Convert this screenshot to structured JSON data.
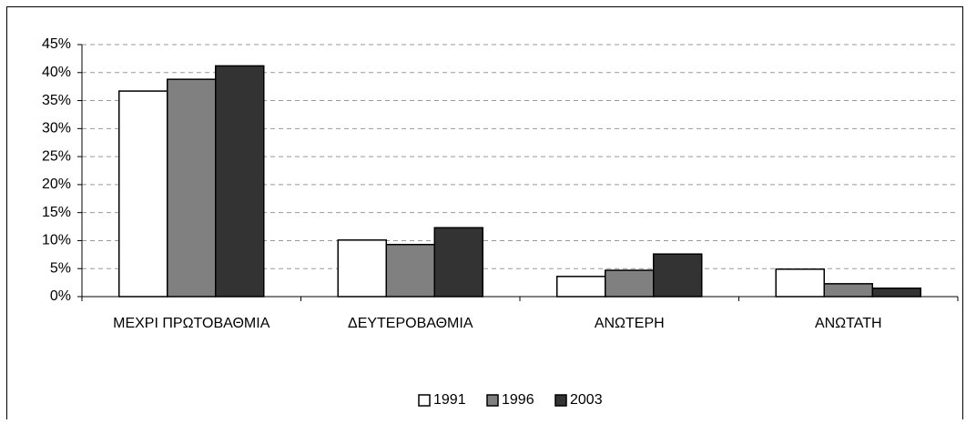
{
  "chart_data": {
    "type": "bar",
    "categories": [
      "ΜΕΧΡΙ ΠΡΩΤΟΒΑΘΜΙΑ",
      "ΔΕΥΤΕΡΟΒΑΘΜΙΑ",
      "ΑΝΩΤΕΡΗ",
      "ΑΝΩΤΑΤΗ"
    ],
    "series": [
      {
        "name": "1991",
        "color": "#ffffff",
        "values": [
          36.7,
          10.1,
          3.6,
          4.9
        ]
      },
      {
        "name": "1996",
        "color": "#808080",
        "values": [
          38.8,
          9.3,
          4.7,
          2.3
        ]
      },
      {
        "name": "2003",
        "color": "#333333",
        "values": [
          41.2,
          12.3,
          7.6,
          1.5
        ]
      }
    ],
    "ylim": [
      0,
      45
    ],
    "yticks": [
      {
        "value": 0,
        "label": "0%"
      },
      {
        "value": 5,
        "label": "5%"
      },
      {
        "value": 10,
        "label": "10%"
      },
      {
        "value": 15,
        "label": "15%"
      },
      {
        "value": 20,
        "label": "20%"
      },
      {
        "value": 25,
        "label": "25%"
      },
      {
        "value": 30,
        "label": "30%"
      },
      {
        "value": 35,
        "label": "35%"
      },
      {
        "value": 40,
        "label": "40%"
      },
      {
        "value": 45,
        "label": "45%"
      }
    ],
    "grid": true,
    "legend": "bottom"
  }
}
